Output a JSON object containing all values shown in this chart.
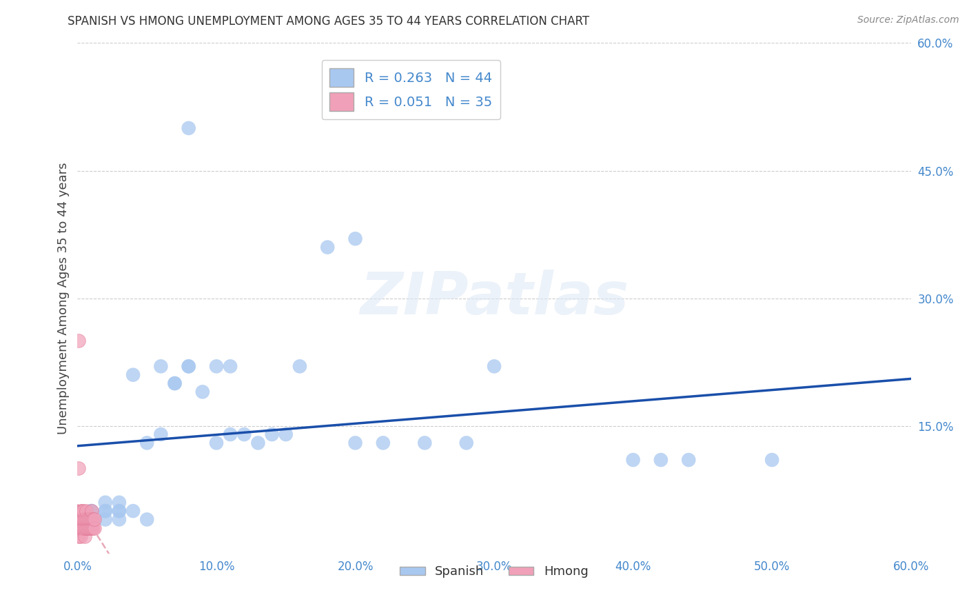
{
  "title": "SPANISH VS HMONG UNEMPLOYMENT AMONG AGES 35 TO 44 YEARS CORRELATION CHART",
  "source": "Source: ZipAtlas.com",
  "ylabel": "Unemployment Among Ages 35 to 44 years",
  "xlim": [
    0.0,
    0.6
  ],
  "ylim": [
    0.0,
    0.6
  ],
  "grid_color": "#cccccc",
  "background_color": "#ffffff",
  "watermark_text": "ZIPatlas",
  "spanish_color": "#a8c8f0",
  "spanish_edge_color": "#7aaadd",
  "hmong_color": "#f0a0b8",
  "hmong_edge_color": "#e07090",
  "spanish_line_color": "#1a4faa",
  "hmong_line_color": "#e8a8b8",
  "tick_color": "#4488cc",
  "label_color": "#444444",
  "title_color": "#333333",
  "source_color": "#888888",
  "legend_R_spanish": "R = 0.263",
  "legend_N_spanish": "N = 44",
  "legend_R_hmong": "R = 0.051",
  "legend_N_hmong": "N = 35",
  "spanish_x": [
    0.01,
    0.01,
    0.01,
    0.01,
    0.02,
    0.02,
    0.02,
    0.02,
    0.03,
    0.03,
    0.03,
    0.03,
    0.04,
    0.04,
    0.05,
    0.05,
    0.06,
    0.06,
    0.07,
    0.07,
    0.08,
    0.08,
    0.09,
    0.1,
    0.1,
    0.11,
    0.11,
    0.12,
    0.13,
    0.14,
    0.15,
    0.16,
    0.18,
    0.2,
    0.22,
    0.25,
    0.28,
    0.3,
    0.4,
    0.42,
    0.44,
    0.5,
    0.08,
    0.2
  ],
  "spanish_y": [
    0.04,
    0.05,
    0.04,
    0.05,
    0.04,
    0.05,
    0.06,
    0.05,
    0.04,
    0.05,
    0.05,
    0.06,
    0.05,
    0.21,
    0.13,
    0.04,
    0.14,
    0.22,
    0.2,
    0.2,
    0.22,
    0.22,
    0.19,
    0.22,
    0.13,
    0.22,
    0.14,
    0.14,
    0.13,
    0.14,
    0.14,
    0.22,
    0.36,
    0.13,
    0.13,
    0.13,
    0.13,
    0.22,
    0.11,
    0.11,
    0.11,
    0.11,
    0.5,
    0.37
  ],
  "hmong_x": [
    0.001,
    0.001,
    0.001,
    0.001,
    0.002,
    0.002,
    0.002,
    0.002,
    0.003,
    0.003,
    0.003,
    0.004,
    0.004,
    0.004,
    0.005,
    0.005,
    0.005,
    0.006,
    0.006,
    0.006,
    0.007,
    0.007,
    0.008,
    0.008,
    0.009,
    0.009,
    0.01,
    0.01,
    0.01,
    0.011,
    0.011,
    0.012,
    0.012,
    0.001,
    0.001
  ],
  "hmong_y": [
    0.02,
    0.03,
    0.03,
    0.04,
    0.02,
    0.03,
    0.04,
    0.05,
    0.03,
    0.04,
    0.05,
    0.03,
    0.04,
    0.05,
    0.02,
    0.03,
    0.04,
    0.03,
    0.04,
    0.05,
    0.03,
    0.04,
    0.03,
    0.04,
    0.03,
    0.04,
    0.03,
    0.04,
    0.05,
    0.03,
    0.04,
    0.03,
    0.04,
    0.25,
    0.1
  ]
}
